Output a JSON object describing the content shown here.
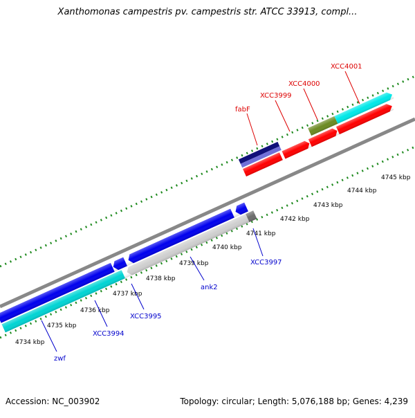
{
  "title": "Xanthomonas campestris pv. campestris str. ATCC 33913, compl...",
  "footer": {
    "accession": "Accession: NC_003902",
    "summary": "Topology: circular; Length: 5,076,188 bp; Genes: 4,239"
  },
  "scale_labels": [
    "4734 kbp",
    "4735 kbp",
    "4736 kbp",
    "4737 kbp",
    "4738 kbp",
    "4739 kbp",
    "4740 kbp",
    "4741 kbp",
    "4742 kbp",
    "4743 kbp",
    "4744 kbp",
    "4745 kbp"
  ],
  "gene_labels": {
    "fabF": "fabF",
    "xcc3999": "XCC3999",
    "xcc4000": "XCC4000",
    "xcc4001": "XCC4001",
    "xcc3997": "XCC3997",
    "ank2": "ank2",
    "xcc3995": "XCC3995",
    "xcc3994": "XCC3994",
    "zwf": "zwf"
  },
  "colors": {
    "forward_cds": "#ff0000",
    "reverse_cds": "#0000ee",
    "reverse_cds_alt": "#00d4d4",
    "reverse_cds_pale": "#cfcfcf",
    "rna": "#10107a",
    "forward_other": "#6b8a23",
    "forward_alt": "#00e8e8",
    "backbone": "#888888",
    "ticks": "#1f8a1f",
    "forward_label": "#dd0000",
    "reverse_label": "#0000cc"
  }
}
